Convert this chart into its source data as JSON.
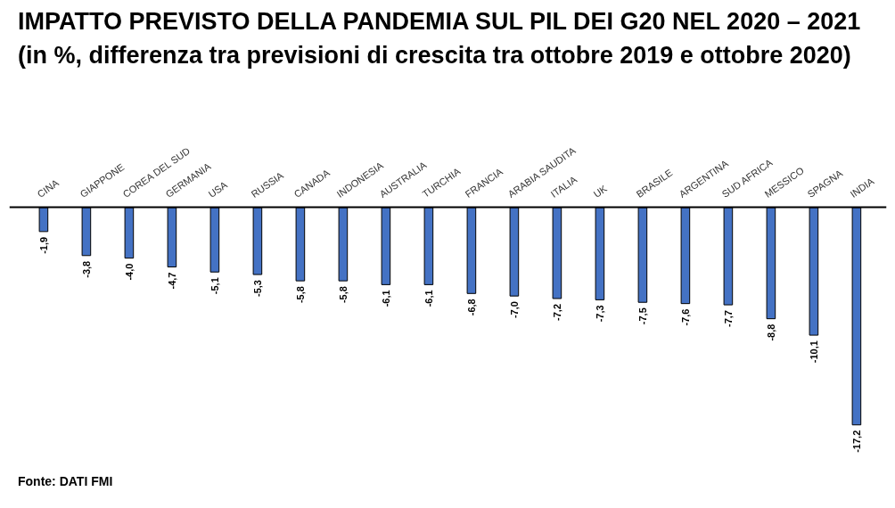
{
  "chart_data": {
    "type": "bar",
    "title": "IMPATTO PREVISTO DELLA PANDEMIA SUL PIL DEI G20 NEL 2020 – 2021 (in %, differenza tra previsioni di crescita tra ottobre 2019 e ottobre 2020)",
    "categories": [
      "CINA",
      "GIAPPONE",
      "COREA DEL SUD",
      "GERMANIA",
      "USA",
      "RUSSIA",
      "CANADA",
      "INDONESIA",
      "AUSTRALIA",
      "TURCHIA",
      "FRANCIA",
      "ARABIA SAUDITA",
      "ITALIA",
      "UK",
      "BRASILE",
      "ARGENTINA",
      "SUD AFRICA",
      "MESSICO",
      "SPAGNA",
      "INDIA"
    ],
    "values": [
      -1.9,
      -3.8,
      -4.0,
      -4.7,
      -5.1,
      -5.3,
      -5.8,
      -5.8,
      -6.1,
      -6.1,
      -6.8,
      -7.0,
      -7.2,
      -7.3,
      -7.5,
      -7.6,
      -7.7,
      -8.8,
      -10.1,
      -17.2
    ],
    "value_labels": [
      "-1,9",
      "-3,8",
      "-4,0",
      "-4,7",
      "-5,1",
      "-5,3",
      "-5,8",
      "-5,8",
      "-6,1",
      "-6,1",
      "-6,8",
      "-7,0",
      "-7,2",
      "-7,3",
      "-7,5",
      "-7,6",
      "-7,7",
      "-8,8",
      "-10,1",
      "-17,2"
    ],
    "color": "#4472c4",
    "annotations": [
      "Fonte: DATI FMI"
    ]
  }
}
